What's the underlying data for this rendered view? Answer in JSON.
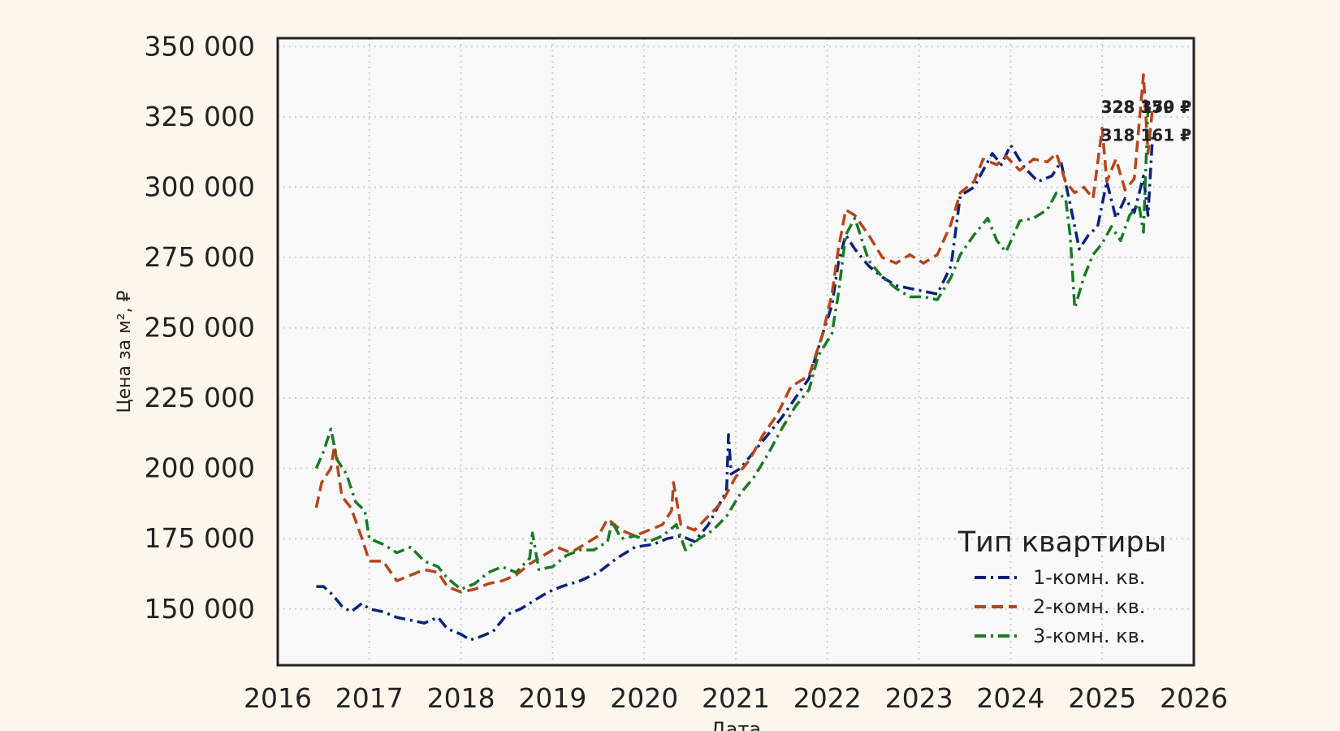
{
  "chart_data": {
    "type": "line",
    "title": "",
    "xlabel": "Дата",
    "ylabel": "Цена за м², ₽",
    "xlim": [
      2016,
      2026
    ],
    "ylim": [
      130000,
      353000
    ],
    "x_ticks": [
      "2016",
      "2017",
      "2018",
      "2019",
      "2020",
      "2021",
      "2022",
      "2023",
      "2024",
      "2025",
      "2026"
    ],
    "y_ticks": [
      "150 000",
      "175 000",
      "200 000",
      "225 000",
      "250 000",
      "275 000",
      "300 000",
      "325 000",
      "350 000"
    ],
    "grid": true,
    "legend": {
      "title": "Тип квартиры",
      "position": "bottom-right"
    },
    "series": [
      {
        "name": "1-комн. кв.",
        "color": "#0b2277",
        "dash": "dashdot",
        "end_label": "318 161 ₽",
        "points": [
          [
            2016.42,
            158000
          ],
          [
            2016.5,
            158000
          ],
          [
            2016.6,
            155000
          ],
          [
            2016.7,
            151000
          ],
          [
            2016.8,
            149000
          ],
          [
            2016.92,
            152000
          ],
          [
            2017.0,
            150000
          ],
          [
            2017.15,
            149000
          ],
          [
            2017.3,
            147000
          ],
          [
            2017.45,
            146000
          ],
          [
            2017.6,
            145000
          ],
          [
            2017.75,
            147000
          ],
          [
            2017.85,
            143000
          ],
          [
            2018.0,
            141000
          ],
          [
            2018.1,
            139000
          ],
          [
            2018.2,
            140000
          ],
          [
            2018.35,
            142000
          ],
          [
            2018.5,
            148000
          ],
          [
            2018.65,
            150000
          ],
          [
            2018.8,
            153000
          ],
          [
            2018.95,
            156000
          ],
          [
            2019.1,
            158000
          ],
          [
            2019.3,
            160000
          ],
          [
            2019.5,
            163000
          ],
          [
            2019.7,
            168000
          ],
          [
            2019.9,
            172000
          ],
          [
            2020.1,
            173000
          ],
          [
            2020.25,
            175000
          ],
          [
            2020.4,
            176000
          ],
          [
            2020.55,
            174000
          ],
          [
            2020.7,
            180000
          ],
          [
            2020.8,
            186000
          ],
          [
            2020.9,
            192000
          ],
          [
            2020.92,
            212000
          ],
          [
            2020.95,
            198000
          ],
          [
            2021.05,
            200000
          ],
          [
            2021.2,
            206000
          ],
          [
            2021.35,
            212000
          ],
          [
            2021.5,
            218000
          ],
          [
            2021.65,
            225000
          ],
          [
            2021.8,
            232000
          ],
          [
            2021.95,
            248000
          ],
          [
            2022.05,
            258000
          ],
          [
            2022.12,
            273000
          ],
          [
            2022.2,
            283000
          ],
          [
            2022.3,
            278000
          ],
          [
            2022.45,
            272000
          ],
          [
            2022.6,
            268000
          ],
          [
            2022.75,
            265000
          ],
          [
            2022.9,
            264000
          ],
          [
            2023.05,
            263000
          ],
          [
            2023.2,
            262000
          ],
          [
            2023.35,
            272000
          ],
          [
            2023.45,
            297000
          ],
          [
            2023.6,
            300000
          ],
          [
            2023.7,
            306000
          ],
          [
            2023.8,
            312000
          ],
          [
            2023.9,
            308000
          ],
          [
            2024.0,
            315000
          ],
          [
            2024.15,
            307000
          ],
          [
            2024.3,
            302000
          ],
          [
            2024.45,
            304000
          ],
          [
            2024.55,
            309000
          ],
          [
            2024.65,
            294000
          ],
          [
            2024.75,
            278000
          ],
          [
            2024.85,
            283000
          ],
          [
            2024.95,
            286000
          ],
          [
            2025.05,
            302000
          ],
          [
            2025.15,
            289000
          ],
          [
            2025.25,
            296000
          ],
          [
            2025.35,
            291000
          ],
          [
            2025.45,
            304000
          ],
          [
            2025.5,
            290000
          ],
          [
            2025.55,
            318161
          ]
        ]
      },
      {
        "name": "2-комн. кв.",
        "color": "#b5451b",
        "dash": "dashed",
        "end_label": "328 179 ₽",
        "points": [
          [
            2016.42,
            186000
          ],
          [
            2016.48,
            195000
          ],
          [
            2016.58,
            200000
          ],
          [
            2016.62,
            208000
          ],
          [
            2016.7,
            190000
          ],
          [
            2016.8,
            186000
          ],
          [
            2016.92,
            175000
          ],
          [
            2017.0,
            167000
          ],
          [
            2017.15,
            167000
          ],
          [
            2017.3,
            160000
          ],
          [
            2017.45,
            162000
          ],
          [
            2017.6,
            164000
          ],
          [
            2017.75,
            163000
          ],
          [
            2017.85,
            158000
          ],
          [
            2018.0,
            156000
          ],
          [
            2018.15,
            157000
          ],
          [
            2018.3,
            159000
          ],
          [
            2018.45,
            160000
          ],
          [
            2018.6,
            162000
          ],
          [
            2018.75,
            166000
          ],
          [
            2018.9,
            169000
          ],
          [
            2019.05,
            172000
          ],
          [
            2019.2,
            170000
          ],
          [
            2019.35,
            173000
          ],
          [
            2019.5,
            176000
          ],
          [
            2019.6,
            182000
          ],
          [
            2019.75,
            178000
          ],
          [
            2019.9,
            176000
          ],
          [
            2020.05,
            178000
          ],
          [
            2020.2,
            180000
          ],
          [
            2020.3,
            185000
          ],
          [
            2020.32,
            195000
          ],
          [
            2020.4,
            180000
          ],
          [
            2020.55,
            178000
          ],
          [
            2020.7,
            183000
          ],
          [
            2020.85,
            188000
          ],
          [
            2021.0,
            197000
          ],
          [
            2021.15,
            203000
          ],
          [
            2021.3,
            212000
          ],
          [
            2021.45,
            219000
          ],
          [
            2021.6,
            229000
          ],
          [
            2021.8,
            233000
          ],
          [
            2021.95,
            248000
          ],
          [
            2022.05,
            262000
          ],
          [
            2022.12,
            278000
          ],
          [
            2022.2,
            292000
          ],
          [
            2022.3,
            290000
          ],
          [
            2022.45,
            283000
          ],
          [
            2022.6,
            275000
          ],
          [
            2022.75,
            273000
          ],
          [
            2022.9,
            276000
          ],
          [
            2023.05,
            273000
          ],
          [
            2023.2,
            276000
          ],
          [
            2023.35,
            287000
          ],
          [
            2023.45,
            298000
          ],
          [
            2023.6,
            302000
          ],
          [
            2023.7,
            310000
          ],
          [
            2023.85,
            308000
          ],
          [
            2023.95,
            311000
          ],
          [
            2024.1,
            306000
          ],
          [
            2024.25,
            310000
          ],
          [
            2024.4,
            309000
          ],
          [
            2024.5,
            312000
          ],
          [
            2024.6,
            302000
          ],
          [
            2024.7,
            298000
          ],
          [
            2024.8,
            300000
          ],
          [
            2024.9,
            296000
          ],
          [
            2025.0,
            321000
          ],
          [
            2025.05,
            302000
          ],
          [
            2025.15,
            310000
          ],
          [
            2025.25,
            299000
          ],
          [
            2025.35,
            303000
          ],
          [
            2025.45,
            340000
          ],
          [
            2025.5,
            312000
          ],
          [
            2025.55,
            328179
          ]
        ]
      },
      {
        "name": "3-комн. кв.",
        "color": "#197a25",
        "dash": "dashdot",
        "end_label": "328 350 ₽",
        "points": [
          [
            2016.42,
            200000
          ],
          [
            2016.5,
            206000
          ],
          [
            2016.58,
            214000
          ],
          [
            2016.65,
            203000
          ],
          [
            2016.75,
            198000
          ],
          [
            2016.85,
            188000
          ],
          [
            2016.95,
            185000
          ],
          [
            2017.0,
            175000
          ],
          [
            2017.15,
            173000
          ],
          [
            2017.3,
            170000
          ],
          [
            2017.45,
            172000
          ],
          [
            2017.6,
            167000
          ],
          [
            2017.75,
            165000
          ],
          [
            2017.85,
            161000
          ],
          [
            2018.0,
            157000
          ],
          [
            2018.15,
            159000
          ],
          [
            2018.3,
            163000
          ],
          [
            2018.45,
            165000
          ],
          [
            2018.6,
            163000
          ],
          [
            2018.75,
            168000
          ],
          [
            2018.78,
            177000
          ],
          [
            2018.85,
            164000
          ],
          [
            2019.0,
            165000
          ],
          [
            2019.15,
            169000
          ],
          [
            2019.3,
            171000
          ],
          [
            2019.45,
            171000
          ],
          [
            2019.6,
            174000
          ],
          [
            2019.65,
            181000
          ],
          [
            2019.75,
            175000
          ],
          [
            2019.9,
            176000
          ],
          [
            2020.05,
            174000
          ],
          [
            2020.2,
            176000
          ],
          [
            2020.35,
            180000
          ],
          [
            2020.45,
            171000
          ],
          [
            2020.6,
            175000
          ],
          [
            2020.75,
            178000
          ],
          [
            2020.9,
            183000
          ],
          [
            2021.05,
            191000
          ],
          [
            2021.2,
            197000
          ],
          [
            2021.35,
            205000
          ],
          [
            2021.5,
            214000
          ],
          [
            2021.65,
            222000
          ],
          [
            2021.8,
            228000
          ],
          [
            2021.9,
            240000
          ],
          [
            2022.05,
            248000
          ],
          [
            2022.12,
            262000
          ],
          [
            2022.2,
            283000
          ],
          [
            2022.3,
            289000
          ],
          [
            2022.45,
            274000
          ],
          [
            2022.6,
            268000
          ],
          [
            2022.75,
            264000
          ],
          [
            2022.9,
            261000
          ],
          [
            2023.05,
            261000
          ],
          [
            2023.2,
            260000
          ],
          [
            2023.35,
            268000
          ],
          [
            2023.45,
            276000
          ],
          [
            2023.6,
            283000
          ],
          [
            2023.75,
            289000
          ],
          [
            2023.85,
            281000
          ],
          [
            2023.95,
            277000
          ],
          [
            2024.1,
            288000
          ],
          [
            2024.25,
            289000
          ],
          [
            2024.4,
            292000
          ],
          [
            2024.5,
            298000
          ],
          [
            2024.6,
            296000
          ],
          [
            2024.65,
            283000
          ],
          [
            2024.7,
            257000
          ],
          [
            2024.8,
            268000
          ],
          [
            2024.9,
            276000
          ],
          [
            2025.0,
            280000
          ],
          [
            2025.1,
            286000
          ],
          [
            2025.2,
            281000
          ],
          [
            2025.3,
            290000
          ],
          [
            2025.4,
            294000
          ],
          [
            2025.45,
            284000
          ],
          [
            2025.5,
            328000
          ],
          [
            2025.55,
            328350
          ]
        ]
      }
    ]
  }
}
